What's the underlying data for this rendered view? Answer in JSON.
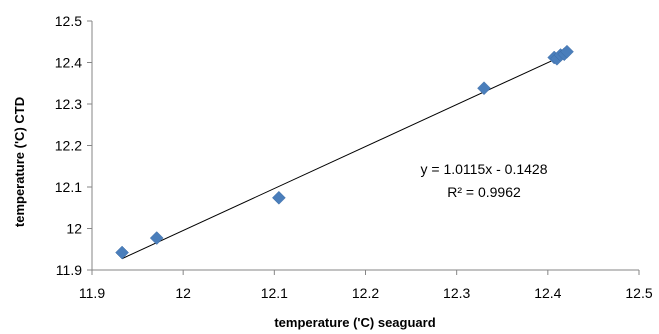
{
  "chart_data": {
    "type": "scatter",
    "xlabel": "temperature ('C) seaguard",
    "ylabel": "temperature ('C) CTD",
    "xlim": [
      11.9,
      12.5
    ],
    "ylim": [
      11.9,
      12.5
    ],
    "x_ticks": [
      "11.9",
      "12",
      "12.1",
      "12.2",
      "12.3",
      "12.4",
      "12.5"
    ],
    "y_ticks": [
      "11.9",
      "12",
      "12.1",
      "12.2",
      "12.3",
      "12.4",
      "12.5"
    ],
    "grid": false,
    "legend": "none",
    "marker_color": "#4a7ebb",
    "series": [
      {
        "points": [
          {
            "x": 11.933,
            "y": 11.942
          },
          {
            "x": 11.971,
            "y": 11.977
          },
          {
            "x": 12.105,
            "y": 12.074
          },
          {
            "x": 12.33,
            "y": 12.338
          },
          {
            "x": 12.407,
            "y": 12.412
          },
          {
            "x": 12.41,
            "y": 12.409
          },
          {
            "x": 12.414,
            "y": 12.418
          },
          {
            "x": 12.418,
            "y": 12.42
          },
          {
            "x": 12.421,
            "y": 12.426
          }
        ]
      }
    ],
    "trendline": {
      "slope": 1.0115,
      "intercept": -0.1428,
      "x_range": [
        11.933,
        12.421
      ],
      "equation_label": "y = 1.0115x - 0.1428",
      "r2_label": "R² = 0.9962"
    }
  }
}
